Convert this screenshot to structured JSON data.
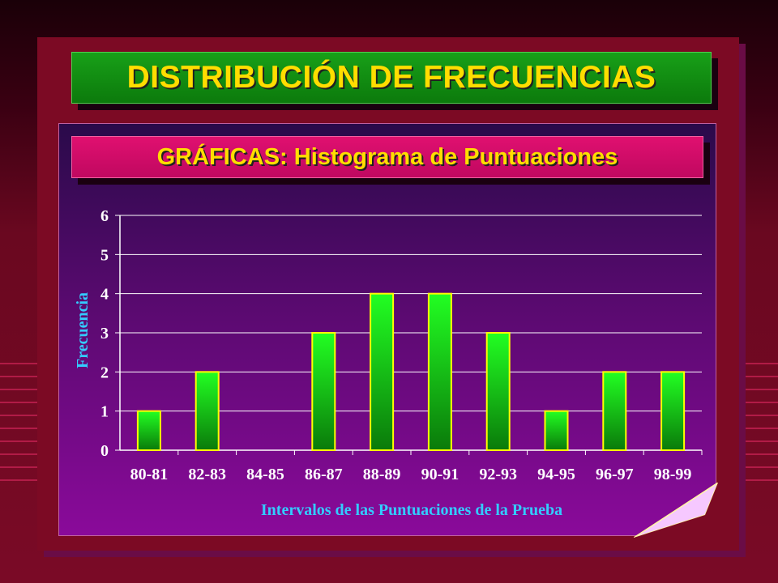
{
  "slide": {
    "title": "DISTRIBUCIÓN DE FRECUENCIAS",
    "subtitle": "GRÁFICAS: Histograma de Puntuaciones"
  },
  "colors": {
    "title_bg": "#14901a",
    "title_text": "#ffdd00",
    "subtitle_bg": "#d80c68",
    "bar_top": "#22ff22",
    "bar_bottom": "#0a7a0a",
    "bar_border": "#ffff00",
    "axis_label": "#33ccff"
  },
  "chart_data": {
    "type": "bar",
    "categories": [
      "80-81",
      "82-83",
      "84-85",
      "86-87",
      "88-89",
      "90-91",
      "92-93",
      "94-95",
      "96-97",
      "98-99"
    ],
    "values": [
      1,
      2,
      0,
      3,
      4,
      4,
      3,
      1,
      2,
      2
    ],
    "xlabel": "Intervalos de las Puntuaciones de la Prueba",
    "ylabel": "Frecuencia",
    "ylim": [
      0,
      6
    ],
    "yticks": [
      "0",
      "1",
      "2",
      "3",
      "4",
      "5",
      "6"
    ],
    "grid": true
  }
}
